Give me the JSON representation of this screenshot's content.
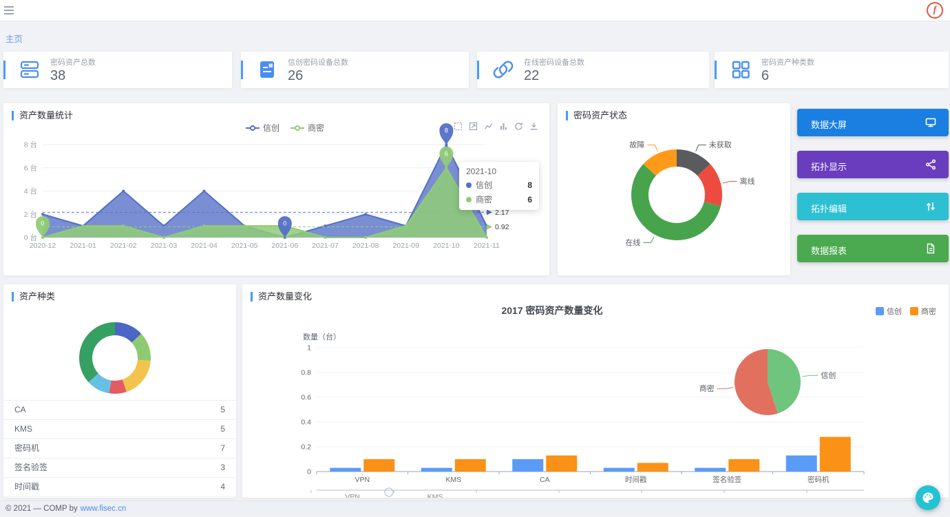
{
  "topbar": {
    "logo_letter": "f"
  },
  "breadcrumb": {
    "home": "主页"
  },
  "stat_cards": [
    {
      "label": "密码资产总数",
      "value": "38",
      "icon": "server-stack-icon"
    },
    {
      "label": "信创密码设备总数",
      "value": "26",
      "icon": "device-list-icon"
    },
    {
      "label": "在线密码设备总数",
      "value": "22",
      "icon": "link-icon"
    },
    {
      "label": "密码资产种类数",
      "value": "6",
      "icon": "grid-icon"
    }
  ],
  "asset_stats_panel": {
    "title": "资产数量统计",
    "legend": [
      {
        "label": "信创",
        "color": "#5470c6"
      },
      {
        "label": "商密",
        "color": "#91cc75"
      }
    ],
    "tooltip": {
      "title": "2021-10",
      "rows": [
        {
          "label": "信创",
          "value": "8",
          "color": "#5470c6"
        },
        {
          "label": "商密",
          "value": "6",
          "color": "#91cc75"
        }
      ]
    },
    "chart_data": {
      "type": "area",
      "x": [
        "2020-12",
        "2021-01",
        "2021-02",
        "2021-03",
        "2021-04",
        "2021-05",
        "2021-06",
        "2021-07",
        "2021-08",
        "2021-09",
        "2021-10",
        "2021-11"
      ],
      "series": [
        {
          "name": "信创",
          "color": "#5470c6",
          "values": [
            2,
            1,
            4,
            1,
            4,
            1,
            0,
            1,
            2,
            1,
            8,
            1
          ],
          "avg": 2.17,
          "avg_label": "2.17"
        },
        {
          "name": "商密",
          "color": "#91cc75",
          "values": [
            0,
            1,
            1,
            0,
            1,
            1,
            1,
            0,
            0,
            1,
            6,
            0
          ],
          "avg": 0.92,
          "avg_label": "0.92"
        }
      ],
      "mark_points": [
        {
          "series": 0,
          "index": 6,
          "value": 0
        },
        {
          "series": 0,
          "index": 10,
          "value": 8
        },
        {
          "series": 1,
          "index": 0,
          "value": 0
        },
        {
          "series": 1,
          "index": 10,
          "value": 6
        }
      ],
      "highlight_index": 10,
      "y_ticks": [
        "0 台",
        "2 台",
        "4 台",
        "6 台",
        "8 台"
      ],
      "ylim": [
        0,
        8
      ]
    }
  },
  "asset_status_panel": {
    "title": "密码资产状态",
    "chart_data": {
      "type": "pie",
      "donut": true,
      "slices": [
        {
          "name": "未获取",
          "value": 5,
          "color": "#595b5e"
        },
        {
          "name": "离线",
          "value": 6,
          "color": "#ee4b40"
        },
        {
          "name": "在线",
          "value": 22,
          "color": "#47a44c"
        },
        {
          "name": "故障",
          "value": 5,
          "color": "#ff9a19"
        }
      ]
    }
  },
  "quick_buttons": [
    {
      "label": "数据大屏",
      "color": "#1a7fe0",
      "icon": "monitor-icon"
    },
    {
      "label": "拓扑显示",
      "color": "#6a3dbf",
      "icon": "topology-icon"
    },
    {
      "label": "拓扑编辑",
      "color": "#2cc0d2",
      "icon": "swap-arrows-icon"
    },
    {
      "label": "数据报表",
      "color": "#4ba94f",
      "icon": "report-file-icon"
    }
  ],
  "asset_type_panel": {
    "title": "资产种类",
    "chart_data": {
      "type": "pie",
      "donut": true,
      "slices": [
        {
          "name": "CA",
          "value": 5,
          "color": "#4b66c4"
        },
        {
          "name": "KMS",
          "value": 5,
          "color": "#8ecb70"
        },
        {
          "name": "密码机",
          "value": 7,
          "color": "#f3c44d"
        },
        {
          "name": "签名验签",
          "value": 3,
          "color": "#e45b63"
        },
        {
          "name": "时间戳",
          "value": 4,
          "color": "#66c0e4"
        },
        {
          "name": "VPN",
          "value": 14,
          "color": "#35a062"
        }
      ]
    },
    "list": [
      {
        "name": "CA",
        "value": "5"
      },
      {
        "name": "KMS",
        "value": "5"
      },
      {
        "name": "密码机",
        "value": "7"
      },
      {
        "name": "签名验签",
        "value": "3"
      },
      {
        "name": "时间戳",
        "value": "4"
      }
    ]
  },
  "asset_change_panel": {
    "title": "资产数量变化",
    "chart_title": "2017 密码资产数量变化",
    "y_axis_name": "数量（台）",
    "legend": [
      {
        "label": "信创",
        "color": "#5b9bf8"
      },
      {
        "label": "商密",
        "color": "#fb9116"
      }
    ],
    "chart_data": {
      "type": "bar",
      "categories": [
        "VPN",
        "KMS",
        "CA",
        "时间戳",
        "签名验签",
        "密码机"
      ],
      "series": [
        {
          "name": "信创",
          "color": "#5b9bf8",
          "values": [
            0.03,
            0.03,
            0.1,
            0.03,
            0.03,
            0.13
          ]
        },
        {
          "name": "商密",
          "color": "#fb9116",
          "values": [
            0.1,
            0.1,
            0.13,
            0.07,
            0.1,
            0.28
          ]
        }
      ],
      "y_ticks": [
        "0",
        "0.2",
        "0.4",
        "0.6",
        "0.8",
        "1"
      ],
      "ylim": [
        0,
        1
      ],
      "pie_overlay": {
        "slices": [
          {
            "name": "信创",
            "value": 45,
            "color": "#6fc57e"
          },
          {
            "name": "商密",
            "value": 55,
            "color": "#e2705f"
          }
        ]
      }
    },
    "partial_axis_labels": [
      "VPN",
      "KMS"
    ]
  },
  "footer": {
    "copyright": "© 2021 — COMP by",
    "link": "www.fisec.cn"
  },
  "fab": {
    "icon": "palette-icon",
    "color": "#23c3d3"
  }
}
